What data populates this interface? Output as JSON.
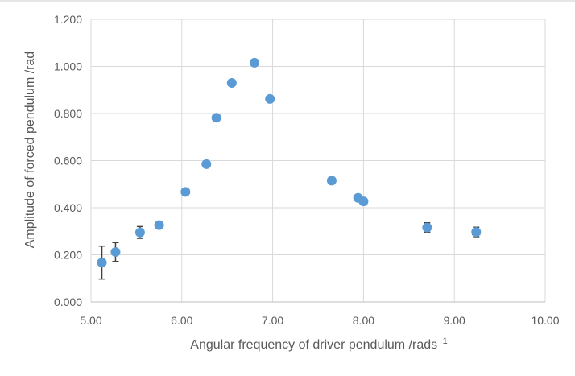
{
  "chart_data": {
    "type": "scatter",
    "title": "",
    "xlabel": "Angular frequency of driver pendulum /rads",
    "xlabel_superscript": "−1",
    "ylabel": "Amplitude of forced pendulum /rad",
    "xlim": [
      5.0,
      10.0
    ],
    "ylim": [
      0.0,
      1.2
    ],
    "x_ticks": [
      5.0,
      6.0,
      7.0,
      8.0,
      9.0,
      10.0
    ],
    "y_ticks": [
      0.0,
      0.2,
      0.4,
      0.6,
      0.8,
      1.0,
      1.2
    ],
    "x_tick_labels": [
      "5.00",
      "6.00",
      "7.00",
      "8.00",
      "9.00",
      "10.00"
    ],
    "y_tick_labels": [
      "0.000",
      "0.200",
      "0.400",
      "0.600",
      "0.800",
      "1.000",
      "1.200"
    ],
    "grid": true,
    "marker_color": "#5b9bd5",
    "error_bar_color": "#404040",
    "gridline_color": "#d9d9d9",
    "points": [
      {
        "x": 5.12,
        "y": 0.167,
        "xerr": 0.02,
        "yerr": 0.07
      },
      {
        "x": 5.27,
        "y": 0.212,
        "xerr": 0.03,
        "yerr": 0.04
      },
      {
        "x": 5.54,
        "y": 0.295,
        "xerr": 0.03,
        "yerr": 0.025
      },
      {
        "x": 5.75,
        "y": 0.326,
        "xerr": 0.03,
        "yerr": 0.015
      },
      {
        "x": 6.04,
        "y": 0.467,
        "xerr": 0.03,
        "yerr": 0.01
      },
      {
        "x": 6.27,
        "y": 0.585,
        "xerr": 0.03,
        "yerr": 0.01
      },
      {
        "x": 6.38,
        "y": 0.782,
        "xerr": 0.03,
        "yerr": 0.01
      },
      {
        "x": 6.55,
        "y": 0.93,
        "xerr": 0.03,
        "yerr": 0.01
      },
      {
        "x": 6.8,
        "y": 1.016,
        "xerr": 0.03,
        "yerr": 0.01
      },
      {
        "x": 6.97,
        "y": 0.862,
        "xerr": 0.03,
        "yerr": 0.01
      },
      {
        "x": 7.65,
        "y": 0.515,
        "xerr": 0.03,
        "yerr": 0.01
      },
      {
        "x": 7.94,
        "y": 0.442,
        "xerr": 0.03,
        "yerr": 0.012
      },
      {
        "x": 8.0,
        "y": 0.427,
        "xerr": 0.03,
        "yerr": 0.012
      },
      {
        "x": 8.7,
        "y": 0.316,
        "xerr": 0.03,
        "yerr": 0.02
      },
      {
        "x": 9.24,
        "y": 0.297,
        "xerr": 0.04,
        "yerr": 0.02
      }
    ]
  }
}
